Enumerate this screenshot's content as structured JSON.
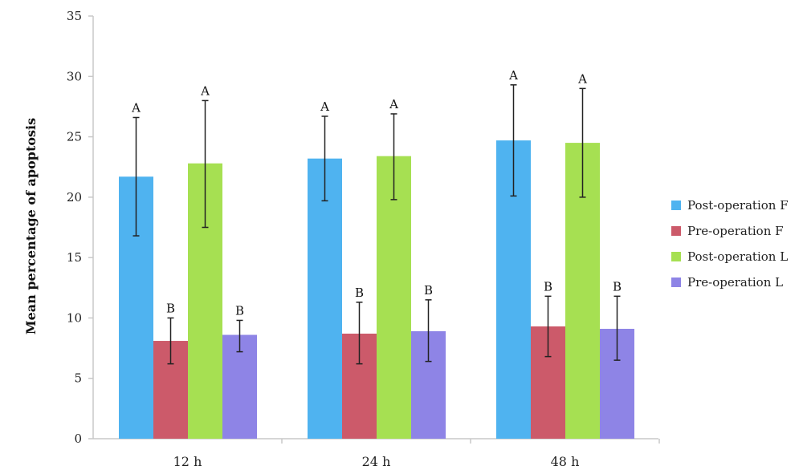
{
  "chart_data": {
    "type": "bar",
    "title": "",
    "xlabel": "",
    "ylabel": "Mean percentage of apoptosis",
    "ylim": [
      0,
      35
    ],
    "yticks": [
      "0",
      "5",
      "10",
      "15",
      "20",
      "25",
      "30",
      "35"
    ],
    "categories": [
      "12 h",
      "24 h",
      "48 h"
    ],
    "grid": false,
    "legend_position": "right",
    "series": [
      {
        "name": "Post-operation F",
        "color": "#4fb3f0",
        "values": [
          21.7,
          23.2,
          24.7
        ],
        "err_low": [
          16.8,
          19.7,
          20.1
        ],
        "err_high": [
          26.6,
          26.7,
          29.3
        ],
        "labels": [
          "A",
          "A",
          "A"
        ]
      },
      {
        "name": "Pre-operation F",
        "color": "#cc5a6a",
        "values": [
          8.1,
          8.7,
          9.3
        ],
        "err_low": [
          6.2,
          6.2,
          6.8
        ],
        "err_high": [
          10.0,
          11.3,
          11.8
        ],
        "labels": [
          "B",
          "B",
          "B"
        ]
      },
      {
        "name": "Post-operation L",
        "color": "#a6e052",
        "values": [
          22.8,
          23.4,
          24.5
        ],
        "err_low": [
          17.5,
          19.8,
          20.0
        ],
        "err_high": [
          28.0,
          26.9,
          29.0
        ],
        "labels": [
          "A",
          "A",
          "A"
        ]
      },
      {
        "name": "Pre-operation L",
        "color": "#8e84e6",
        "values": [
          8.6,
          8.9,
          9.1
        ],
        "err_low": [
          7.2,
          6.4,
          6.5
        ],
        "err_high": [
          9.8,
          11.5,
          11.8
        ],
        "labels": [
          "B",
          "B",
          "B"
        ]
      }
    ]
  }
}
